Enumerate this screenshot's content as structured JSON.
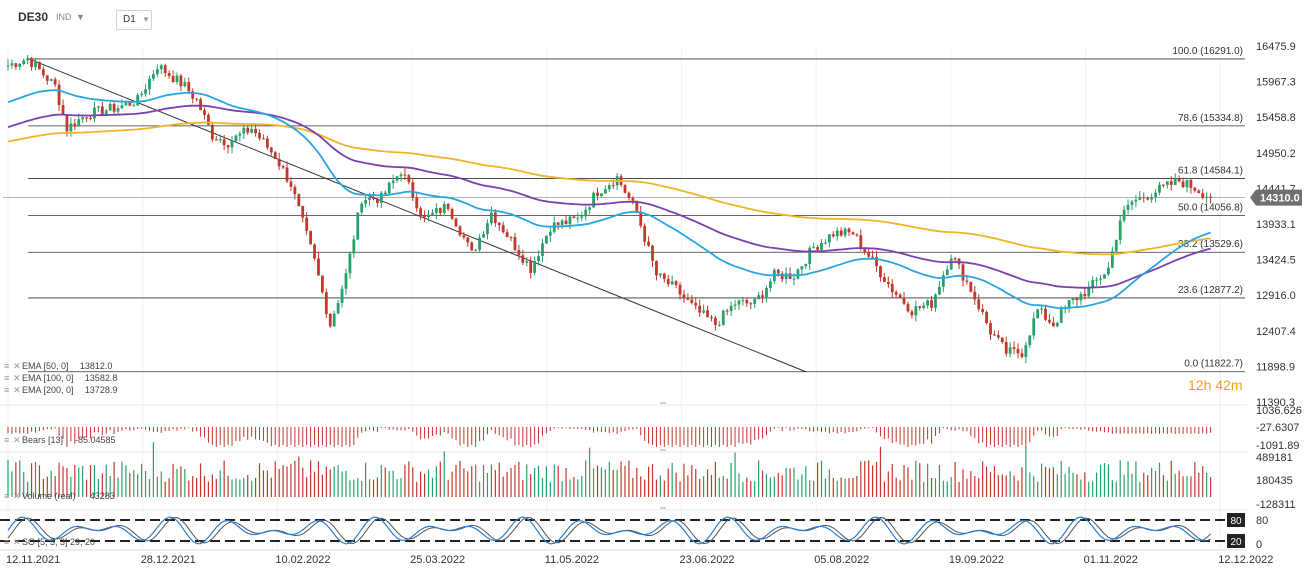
{
  "header": {
    "symbol": "DE30",
    "type": "IND",
    "timeframe": "D1"
  },
  "colors": {
    "ema50": "#2aa5e0",
    "ema100": "#7b3fb0",
    "ema200": "#f0b429",
    "up": "#26a269",
    "down": "#c0392b",
    "price_tag": "#6f6f6f",
    "countdown": "#f0a020"
  },
  "price_tag": "14310.0",
  "countdown": {
    "hours": "12",
    "h": "h",
    "minutes": "42",
    "m": "m"
  },
  "indicators": [
    {
      "label": "EMA [50, 0]",
      "value": "13812.0"
    },
    {
      "label": "EMA [100, 0]",
      "value": "13582.8"
    },
    {
      "label": "EMA [200, 0]",
      "value": "13728.9"
    }
  ],
  "bears": {
    "label": "Bears [13]",
    "value": "-85.04585",
    "ticks": [
      "1036.626",
      "-27.6307",
      "-1091.89"
    ]
  },
  "volume": {
    "label": "Volume (real)",
    "value": "43283",
    "ticks": [
      "489181",
      "180435",
      "-128311"
    ]
  },
  "stoch": {
    "label": "SO [5, 3, 3] 29, 20",
    "levels": [
      "80",
      "20"
    ],
    "ticks": [
      "80",
      "0"
    ]
  },
  "chart_data": {
    "type": "candlestick",
    "yticks": [
      16475.9,
      15967.3,
      15458.8,
      14950.2,
      14441.7,
      13933.1,
      13424.5,
      12916.0,
      12407.4,
      11898.9,
      11390.3
    ],
    "ylim": [
      11390.3,
      16475.9
    ],
    "xticks": [
      "12.11.2021",
      "28.12.2021",
      "10.02.2022",
      "25.03.2022",
      "11.05.2022",
      "23.06.2022",
      "05.08.2022",
      "19.09.2022",
      "01.11.2022",
      "12.12.2022"
    ],
    "fib_levels": [
      {
        "label": "100.0 (16291.0)",
        "value": 16291.0
      },
      {
        "label": "78.6 (15334.8)",
        "value": 15334.8
      },
      {
        "label": "61.8 (14584.1)",
        "value": 14584.1
      },
      {
        "label": "50.0 (14056.8)",
        "value": 14056.8
      },
      {
        "label": "38.2 (13529.6)",
        "value": 13529.6
      },
      {
        "label": "23.6 (12877.2)",
        "value": 12877.2
      },
      {
        "label": "0.0 (11822.7)",
        "value": 11822.7
      }
    ],
    "current_price": 14310.0,
    "path_keypoints": [
      [
        0,
        16200
      ],
      [
        5,
        16300
      ],
      [
        12,
        15900
      ],
      [
        15,
        15300
      ],
      [
        20,
        15500
      ],
      [
        28,
        15600
      ],
      [
        33,
        15700
      ],
      [
        38,
        16200
      ],
      [
        45,
        15900
      ],
      [
        48,
        15700
      ],
      [
        52,
        15200
      ],
      [
        56,
        15100
      ],
      [
        62,
        15300
      ],
      [
        68,
        14900
      ],
      [
        72,
        14500
      ],
      [
        78,
        13400
      ],
      [
        82,
        12500
      ],
      [
        86,
        13200
      ],
      [
        90,
        14300
      ],
      [
        95,
        14300
      ],
      [
        100,
        14700
      ],
      [
        106,
        14000
      ],
      [
        112,
        14200
      ],
      [
        118,
        13500
      ],
      [
        123,
        14100
      ],
      [
        128,
        13700
      ],
      [
        133,
        13300
      ],
      [
        138,
        13900
      ],
      [
        145,
        14000
      ],
      [
        150,
        14400
      ],
      [
        155,
        14600
      ],
      [
        160,
        14100
      ],
      [
        165,
        13200
      ],
      [
        170,
        13000
      ],
      [
        175,
        12700
      ],
      [
        180,
        12500
      ],
      [
        185,
        12800
      ],
      [
        190,
        12800
      ],
      [
        195,
        13200
      ],
      [
        200,
        13200
      ],
      [
        205,
        13600
      ],
      [
        210,
        13800
      ],
      [
        215,
        13800
      ],
      [
        220,
        13400
      ],
      [
        225,
        13000
      ],
      [
        230,
        12700
      ],
      [
        235,
        12800
      ],
      [
        240,
        13500
      ],
      [
        245,
        13000
      ],
      [
        250,
        12400
      ],
      [
        254,
        12100
      ],
      [
        258,
        12100
      ],
      [
        262,
        12700
      ],
      [
        266,
        12500
      ],
      [
        270,
        12800
      ],
      [
        275,
        13000
      ],
      [
        280,
        13300
      ],
      [
        283,
        14000
      ],
      [
        286,
        14250
      ],
      [
        292,
        14400
      ],
      [
        298,
        14550
      ],
      [
        302,
        14450
      ],
      [
        306,
        14310
      ]
    ],
    "ema_end": {
      "ema50": 13812.0,
      "ema100": 13582.8,
      "ema200": 13728.9
    }
  }
}
